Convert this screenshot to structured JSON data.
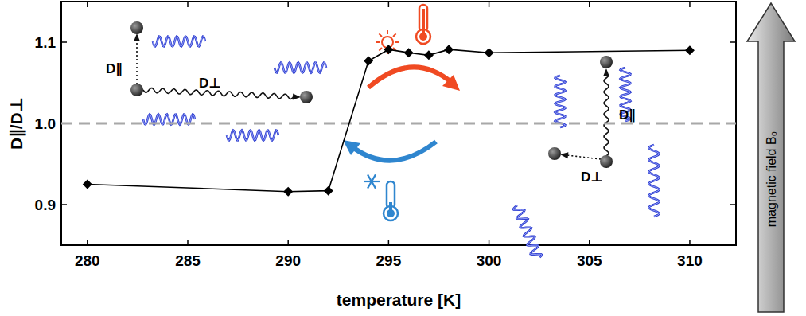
{
  "chart_data": {
    "type": "line",
    "xlabel": "temperature [K]",
    "ylabel": "D∥/D⊥",
    "xlim": [
      278.7,
      312.3
    ],
    "ylim": [
      0.85,
      1.15
    ],
    "xticks": [
      280,
      285,
      290,
      295,
      300,
      305,
      310
    ],
    "yticks": [
      {
        "value": 0.9,
        "label": "0.9"
      },
      {
        "value": 1.0,
        "label": "1.0"
      },
      {
        "value": 1.1,
        "label": "1.1"
      }
    ],
    "x": [
      280,
      290,
      292,
      294,
      295,
      296,
      297,
      298,
      300,
      310
    ],
    "values": [
      0.925,
      0.916,
      0.917,
      1.077,
      1.091,
      1.087,
      1.084,
      1.091,
      1.087,
      1.09
    ],
    "color": "#000000",
    "marker": "diamond",
    "reference_line": 1.0,
    "annotations": [
      "D∥",
      "D⊥",
      "D∥",
      "D⊥",
      "magnetic field B₀"
    ]
  }
}
